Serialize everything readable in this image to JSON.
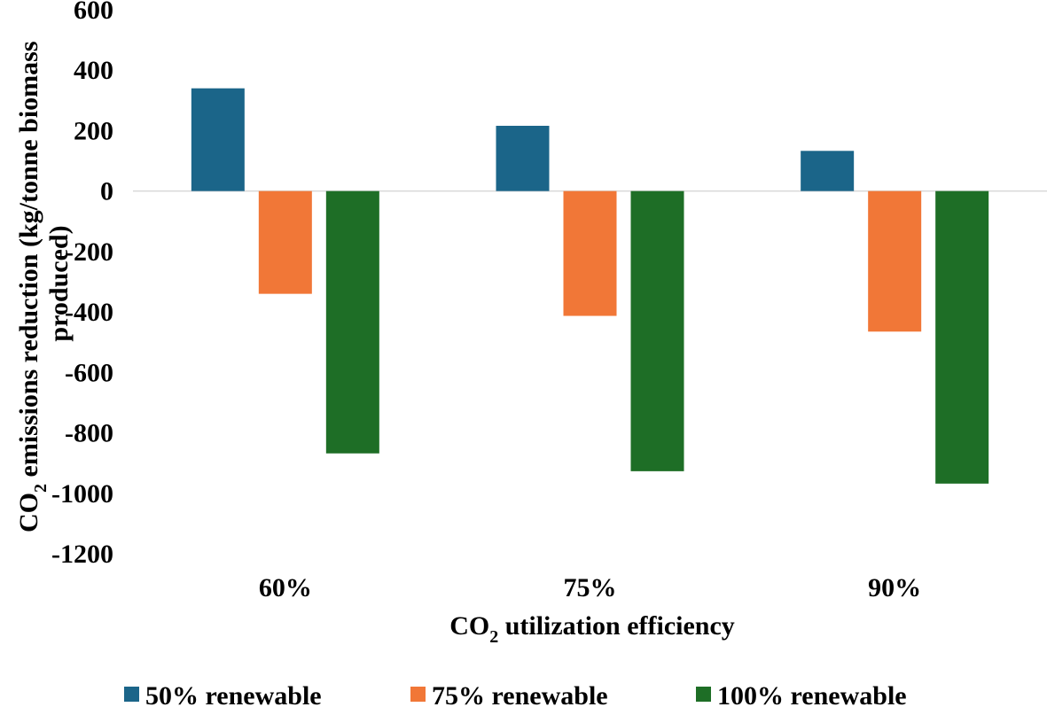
{
  "chart_data": {
    "type": "bar",
    "categories": [
      "60%",
      "75%",
      "90%"
    ],
    "series": [
      {
        "name": "50% renewable",
        "color": "#1b6589",
        "values": [
          340,
          216,
          133
        ]
      },
      {
        "name": "75% renewable",
        "color": "#f17737",
        "values": [
          -340,
          -413,
          -465
        ]
      },
      {
        "name": "100% renewable",
        "color": "#1e6e26",
        "values": [
          -868,
          -927,
          -968
        ]
      }
    ],
    "xlabel": {
      "prefix": "CO",
      "sub": "2",
      "suffix": " utilization efficiency"
    },
    "ylabel": {
      "prefix": "CO",
      "sub": "2",
      "suffix": " emissions reduction (kg/tonne biomass",
      "line2": "produced)"
    },
    "yticks": [
      "600",
      "400",
      "200",
      "0",
      "-200",
      "-400",
      "-600",
      "-800",
      "-1000",
      "-1200"
    ],
    "ylim": [
      -1200,
      600
    ],
    "grid": false,
    "legend": "bottom",
    "zero_line_color": "#d9d9d9"
  }
}
